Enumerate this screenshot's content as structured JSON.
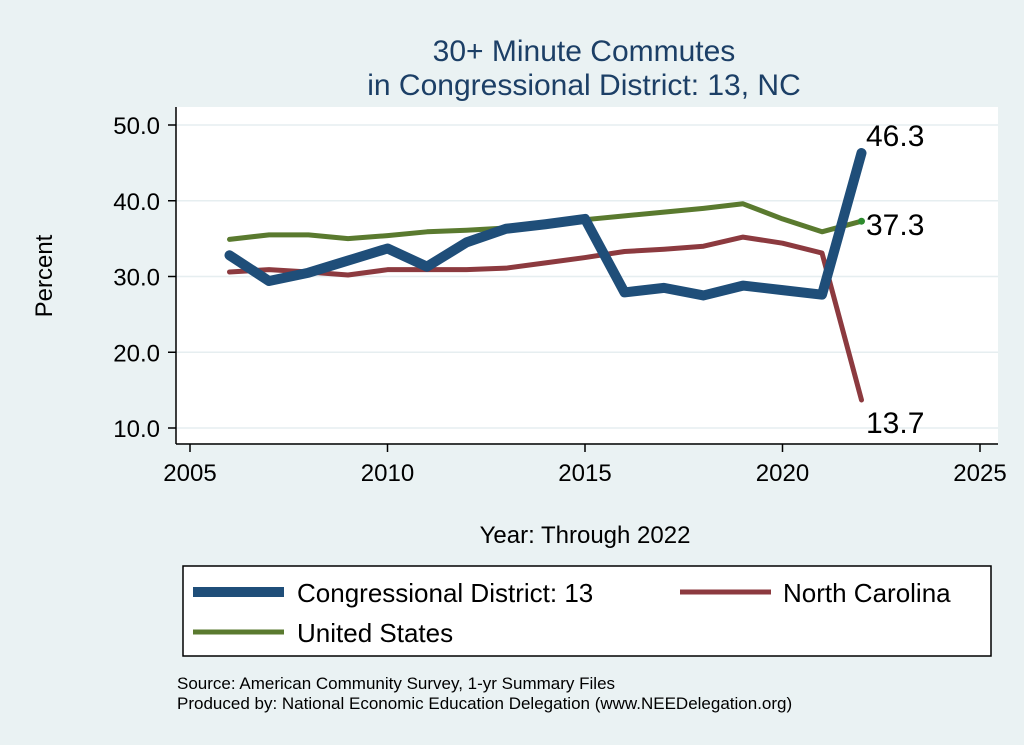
{
  "chart_data": {
    "type": "line",
    "title": [
      "30+ Minute Commutes",
      "in Congressional District:  13, NC"
    ],
    "xlabel": "Year: Through 2022",
    "ylabel": "Percent",
    "xlim": [
      2005,
      2025
    ],
    "ylim": [
      10,
      50
    ],
    "x_ticks": [
      "2005",
      "2010",
      "2015",
      "2020",
      "2025"
    ],
    "y_ticks": [
      "10.0",
      "20.0",
      "30.0",
      "40.0",
      "50.0"
    ],
    "grid": true,
    "legend_position": "bottom",
    "series": [
      {
        "name": "Congressional District:  13",
        "color": "#1f4e79",
        "x": [
          2006,
          2007,
          2008,
          2009,
          2010,
          2011,
          2012,
          2013,
          2014,
          2015,
          2016,
          2017,
          2018,
          2019,
          2020,
          2021,
          2022
        ],
        "values": [
          32.8,
          29.4,
          30.5,
          32.1,
          33.7,
          31.3,
          34.5,
          36.3,
          36.9,
          37.6,
          27.9,
          28.5,
          27.5,
          28.8,
          28.2,
          27.6,
          46.3
        ],
        "end_label": "46.3"
      },
      {
        "name": "North Carolina",
        "color": "#8c3a3f",
        "x": [
          2006,
          2007,
          2008,
          2009,
          2010,
          2011,
          2012,
          2013,
          2014,
          2015,
          2016,
          2017,
          2018,
          2019,
          2020,
          2021,
          2022
        ],
        "values": [
          30.6,
          30.9,
          30.6,
          30.2,
          30.9,
          30.9,
          30.9,
          31.1,
          31.8,
          32.5,
          33.3,
          33.6,
          34.0,
          35.2,
          34.4,
          33.1,
          13.7
        ],
        "end_label": "13.7"
      },
      {
        "name": "United States",
        "color": "#5a7a2f",
        "x": [
          2006,
          2007,
          2008,
          2009,
          2010,
          2011,
          2012,
          2013,
          2014,
          2015,
          2016,
          2017,
          2018,
          2019,
          2020,
          2021,
          2022
        ],
        "values": [
          34.9,
          35.5,
          35.5,
          35.0,
          35.4,
          35.9,
          36.1,
          36.4,
          37.0,
          37.5,
          38.0,
          38.5,
          39.0,
          39.6,
          37.6,
          35.9,
          37.3
        ],
        "end_label": "37.3"
      }
    ]
  },
  "source_lines": [
    "Source: American Community Survey, 1-yr Summary Files",
    "Produced by: National Economic Education Delegation (www.NEEDelegation.org)"
  ]
}
